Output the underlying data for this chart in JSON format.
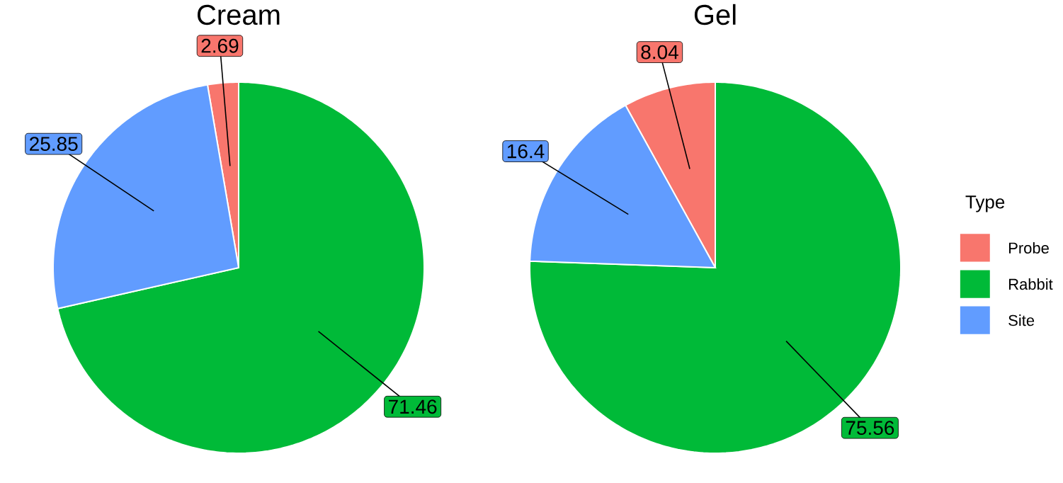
{
  "chart_data": [
    {
      "type": "pie",
      "title": "Cream",
      "categories": [
        null,
        null,
        null
      ],
      "values": [
        2.69,
        71.46,
        25.85
      ],
      "colors": [
        "#f8766d",
        "#00ba38",
        "#619cff"
      ],
      "data_labels": true
    },
    {
      "type": "pie",
      "title": "Gel",
      "categories": [
        "Probe",
        "Rabbit",
        "Site"
      ],
      "values": [
        8.04,
        75.56,
        16.4
      ],
      "colors": [
        "#f8766d",
        "#00ba38",
        "#619cff"
      ],
      "data_labels": true,
      "legend": "right",
      "legend_title": "Type"
    }
  ]
}
